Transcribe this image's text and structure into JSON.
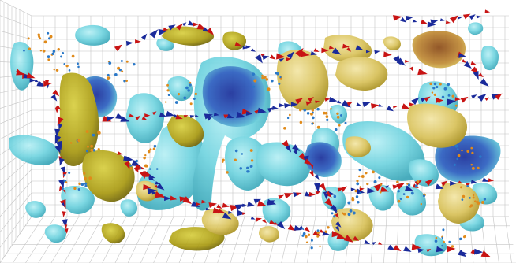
{
  "scene": {
    "description_visible_text": "",
    "colors": {
      "background": "#ffffff",
      "grid": "#b9b9b9",
      "cyan_blob": "#6fd3df",
      "cyan_blob_edge": "#3aa6b8",
      "deep_blue_blob": "#1f3fa0",
      "yellow_blob": "#d9c25a",
      "olive_blob": "#b7aa1e",
      "arrow_red": "#c81414",
      "arrow_blue": "#1a2a9a",
      "arrow_orange": "#e08a1a"
    }
  }
}
